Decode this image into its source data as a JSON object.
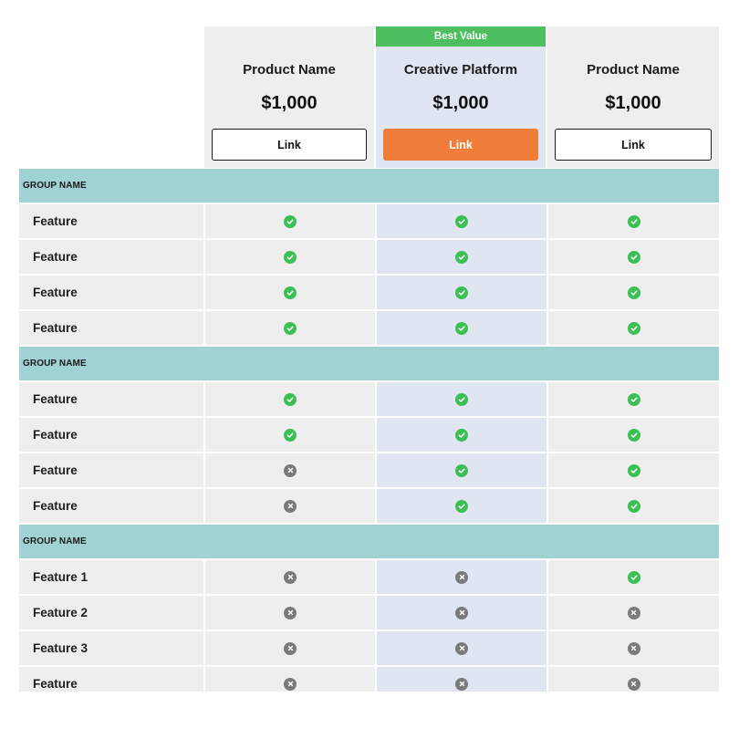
{
  "plans": [
    {
      "name": "Product Name",
      "price": "$1,000",
      "button": "Link",
      "badge": ""
    },
    {
      "name": "Creative Platform",
      "price": "$1,000",
      "button": "Link",
      "badge": "Best Value"
    },
    {
      "name": "Product Name",
      "price": "$1,000",
      "button": "Link",
      "badge": ""
    }
  ],
  "colors": {
    "badge": "#4dbf5e",
    "primary_button": "#f07d3a",
    "group_header": "#a0d1d3",
    "featured_column": "#dfe6f2",
    "check_icon": "#3cbf55",
    "cross_icon": "#7a7a7a"
  },
  "groups": [
    {
      "name": "GROUP NAME",
      "rows": [
        {
          "feature": "Feature",
          "values": [
            "check",
            "check",
            "check"
          ]
        },
        {
          "feature": "Feature",
          "values": [
            "check",
            "check",
            "check"
          ]
        },
        {
          "feature": "Feature",
          "values": [
            "check",
            "check",
            "check"
          ]
        },
        {
          "feature": "Feature",
          "values": [
            "check",
            "check",
            "check"
          ]
        }
      ]
    },
    {
      "name": "GROUP NAME",
      "rows": [
        {
          "feature": "Feature",
          "values": [
            "check",
            "check",
            "check"
          ]
        },
        {
          "feature": "Feature",
          "values": [
            "check",
            "check",
            "check"
          ]
        },
        {
          "feature": "Feature",
          "values": [
            "cross",
            "check",
            "check"
          ]
        },
        {
          "feature": "Feature",
          "values": [
            "cross",
            "check",
            "check"
          ]
        }
      ]
    },
    {
      "name": "GROUP NAME",
      "rows": [
        {
          "feature": "Feature 1",
          "values": [
            "cross",
            "cross",
            "check"
          ]
        },
        {
          "feature": "Feature 2",
          "values": [
            "cross",
            "cross",
            "cross"
          ]
        },
        {
          "feature": "Feature 3",
          "values": [
            "cross",
            "cross",
            "cross"
          ]
        },
        {
          "feature": "Feature",
          "values": [
            "cross",
            "cross",
            "cross"
          ]
        }
      ]
    }
  ]
}
